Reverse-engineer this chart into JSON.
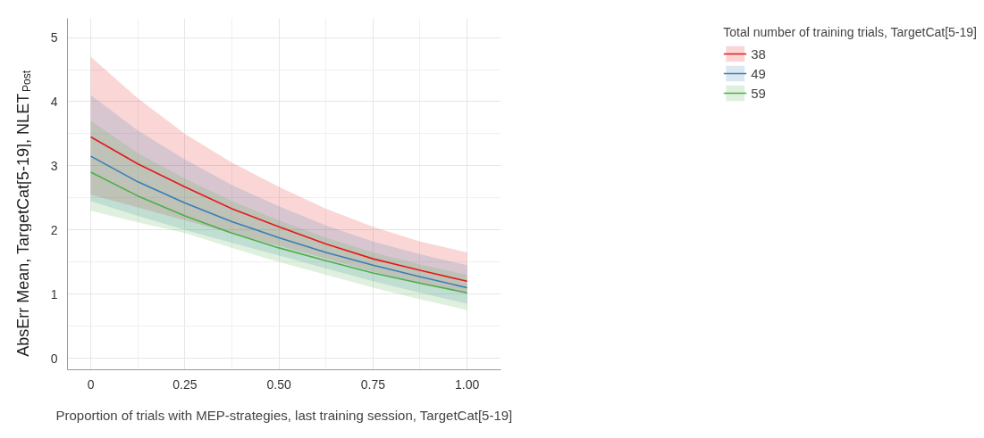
{
  "chart_data": {
    "type": "line",
    "xlabel": "Proportion of trials with MEP-strategies, last training session, TargetCat[5-19]",
    "ylabel": "AbsErr Mean, TargetCat[5-19], NLET$_{Post}$",
    "legend_title": "Total number of training trials, TargetCat[5-19]",
    "x": [
      0,
      0.125,
      0.25,
      0.375,
      0.5,
      0.625,
      0.75,
      0.875,
      1
    ],
    "series": [
      {
        "name": "38",
        "color": "#e41a1c",
        "values": [
          3.45,
          3.03,
          2.67,
          2.33,
          2.05,
          1.78,
          1.55,
          1.37,
          1.2
        ],
        "upper": [
          4.7,
          4.05,
          3.5,
          3.05,
          2.67,
          2.33,
          2.05,
          1.82,
          1.65
        ],
        "lower": [
          2.55,
          2.35,
          2.15,
          1.95,
          1.75,
          1.55,
          1.35,
          1.17,
          1.0
        ]
      },
      {
        "name": "49",
        "color": "#377eb8",
        "values": [
          3.15,
          2.75,
          2.42,
          2.13,
          1.88,
          1.65,
          1.45,
          1.27,
          1.1
        ],
        "upper": [
          4.1,
          3.55,
          3.1,
          2.7,
          2.37,
          2.07,
          1.82,
          1.62,
          1.45
        ],
        "lower": [
          2.45,
          2.22,
          2.0,
          1.8,
          1.6,
          1.4,
          1.2,
          1.02,
          0.85
        ]
      },
      {
        "name": "59",
        "color": "#4daf4a",
        "values": [
          2.9,
          2.53,
          2.22,
          1.95,
          1.72,
          1.52,
          1.33,
          1.17,
          1.02
        ],
        "upper": [
          3.7,
          3.2,
          2.8,
          2.45,
          2.15,
          1.88,
          1.65,
          1.46,
          1.3
        ],
        "lower": [
          2.3,
          2.12,
          1.95,
          1.72,
          1.5,
          1.3,
          1.1,
          0.92,
          0.75
        ]
      }
    ],
    "xlim": [
      -0.062,
      1.09
    ],
    "ylim": [
      -0.18,
      5.3
    ],
    "xticks": [
      0,
      0.25,
      {
        "value": 0.5,
        "label": "0.50"
      },
      0.75,
      {
        "value": 1,
        "label": "1.00"
      }
    ],
    "yticks": [
      0,
      1,
      2,
      3,
      4,
      5
    ],
    "grid": true,
    "legend": "right",
    "line_style": "solid",
    "marker": "none"
  }
}
